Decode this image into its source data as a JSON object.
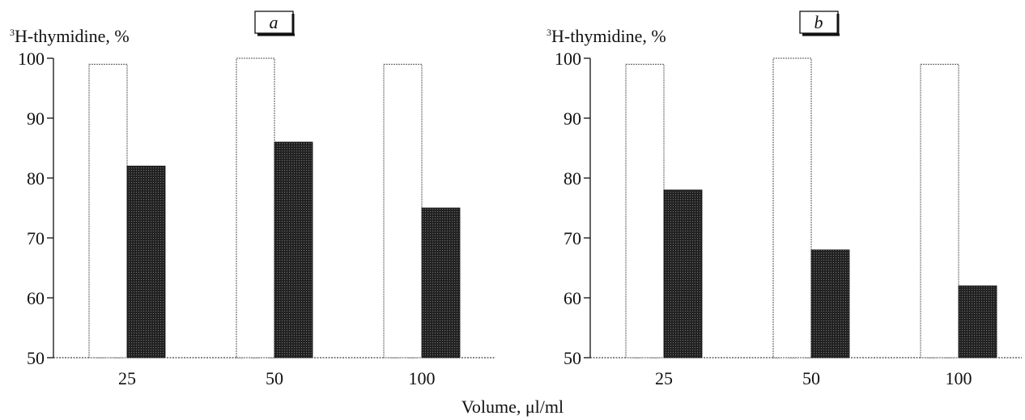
{
  "chart_data": [
    {
      "type": "bar",
      "panel_label": "a",
      "ylabel_sup": "3",
      "ylabel": "H-thymidine, %",
      "categories": [
        "25",
        "50",
        "100"
      ],
      "series": [
        {
          "values": [
            99,
            100,
            99
          ],
          "color": "#ffffff"
        },
        {
          "values": [
            82,
            86,
            75
          ],
          "color": "#222222"
        }
      ],
      "ylim": [
        50,
        100
      ],
      "yticks": [
        "50",
        "60",
        "70",
        "80",
        "90",
        "100"
      ]
    },
    {
      "type": "bar",
      "panel_label": "b",
      "ylabel_sup": "3",
      "ylabel": "H-thymidine, %",
      "categories": [
        "25",
        "50",
        "100"
      ],
      "series": [
        {
          "values": [
            99,
            100,
            99
          ],
          "color": "#ffffff"
        },
        {
          "values": [
            78,
            68,
            62
          ],
          "color": "#222222"
        }
      ],
      "ylim": [
        50,
        100
      ],
      "yticks": [
        "50",
        "60",
        "70",
        "80",
        "90",
        "100"
      ]
    }
  ],
  "shared_xlabel": "Volume, μl/ml"
}
